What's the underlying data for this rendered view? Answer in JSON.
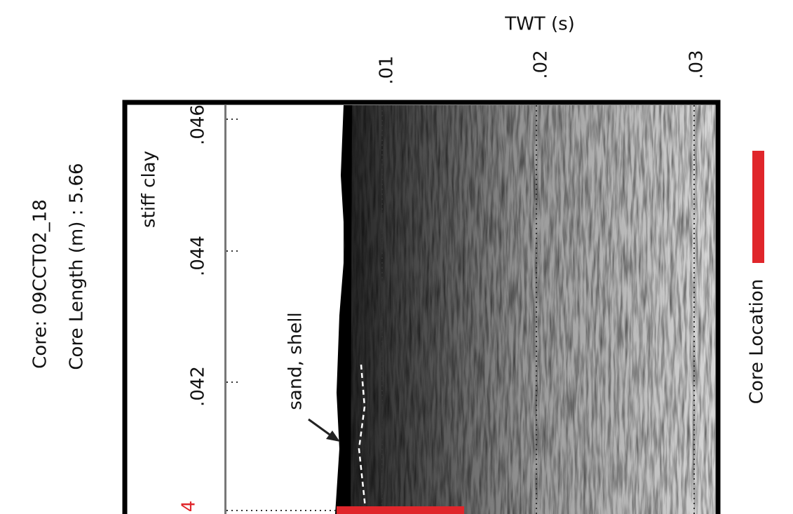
{
  "figure": {
    "axis_title": "TWT (s)",
    "twt_ticks": [
      ".01",
      ".02",
      ".03"
    ],
    "trace_ticks": [
      ".046",
      ".044",
      ".042"
    ],
    "edge_label": "4",
    "annotations": {
      "upper": "stiff clay",
      "lower": "sand, shell"
    },
    "core_name": "Core: 09CCT02_18",
    "core_length": "Core Length (m) : 5.66",
    "legend": "Core Location"
  }
}
